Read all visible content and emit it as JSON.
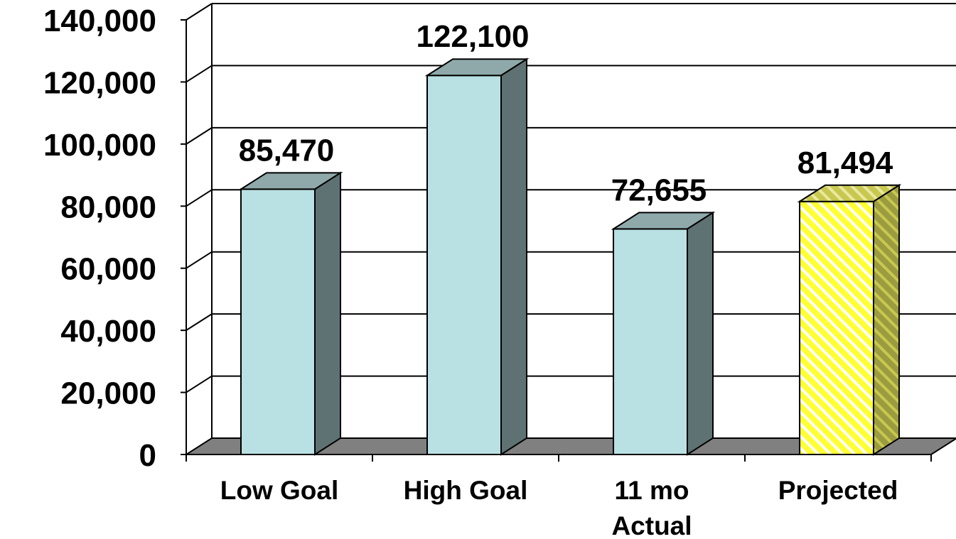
{
  "chart_data": {
    "type": "bar",
    "style": "3d",
    "title": "",
    "xlabel": "",
    "ylabel": "",
    "categories": [
      "Low Goal",
      "High Goal",
      "11 mo Actual",
      "Projected"
    ],
    "category_lines": [
      [
        "Low Goal"
      ],
      [
        "High Goal"
      ],
      [
        "11 mo",
        "Actual"
      ],
      [
        "Projected"
      ]
    ],
    "values": [
      85470,
      122100,
      72655,
      81494
    ],
    "data_labels": [
      "85,470",
      "122,100",
      "72,655",
      "81,494"
    ],
    "ylim": [
      0,
      140000
    ],
    "yticks": [
      0,
      20000,
      40000,
      60000,
      80000,
      100000,
      120000,
      140000
    ],
    "ytick_labels": [
      "0",
      "20,000",
      "40,000",
      "60,000",
      "80,000",
      "100,000",
      "120,000",
      "140,000"
    ],
    "grid": true,
    "legend": "none",
    "colors": {
      "bar_front": "#B9E0E2",
      "bar_top": "#8FA9AA",
      "bar_side": "#5F7273",
      "projected_front": "#FFFF33",
      "projected_stripe": "#FFFFFF",
      "projected_top": "#C8C850",
      "projected_side": "#9B9B40",
      "floor": "#808080",
      "gridline": "#000000"
    }
  }
}
